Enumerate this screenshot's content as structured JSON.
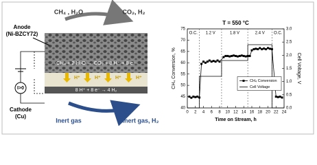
{
  "diagram": {
    "anode": "Anode",
    "anode_material": "(Ni-BZCY72)",
    "feed_in": "CH₄ , H₂O",
    "feed_out": "CO₂, H₂",
    "anode_reaction": "CH₄ + 2 H₂O → CO₂ + 8 H⁺ + 8 e⁻",
    "protons": [
      "H⁺",
      "H⁺",
      "H⁺",
      "H⁺"
    ],
    "cathode_reaction": "8 H⁺ + 8 e⁻ → 4 H₂",
    "current": "I>0",
    "cathode": "Cathode",
    "cathode_material": "(Cu)",
    "sweep_in": "Inert gas",
    "sweep_out": "Inert gas, H₂"
  },
  "chart_data": {
    "type": "line",
    "title": "T = 550 °C",
    "x_label": "Time on Stream, h",
    "y_label": "CH₄ Conversion, %",
    "y2_label": "Cell Voltage, V",
    "xlim": [
      0,
      24
    ],
    "xticks": [
      0,
      2,
      4,
      6,
      8,
      10,
      12,
      14,
      16,
      18,
      20,
      22,
      24
    ],
    "ylim": [
      40,
      75
    ],
    "yticks": [
      40,
      45,
      50,
      55,
      60,
      65,
      70,
      75
    ],
    "y2lim": [
      0,
      3
    ],
    "y2ticks": [
      {
        "value": 0,
        "label": "0.0"
      },
      0.5,
      {
        "value": 1,
        "label": "1.0"
      },
      1.5,
      {
        "value": 2,
        "label": "2.0"
      },
      2.5,
      {
        "value": 3,
        "label": "3.0"
      }
    ],
    "annotations": [
      "O.C.",
      "1.2 V",
      "1.8 V",
      "2.4 V",
      "O.C."
    ],
    "legend": "center right",
    "series": [
      {
        "name": "CH₄ Conversion",
        "color": "#000000",
        "marker": "square",
        "x": [
          0.5,
          1,
          1.5,
          2,
          2.5,
          3,
          3.5,
          4,
          4.5,
          5,
          5.5,
          6,
          6.5,
          7,
          7.5,
          8,
          9,
          9.5,
          10,
          10.5,
          11,
          11.5,
          12,
          12.5,
          13,
          13.5,
          14,
          14.5,
          15,
          15.5,
          16,
          16.5,
          17,
          17.5,
          18,
          18.5,
          19,
          19.5,
          20,
          20.5,
          21,
          22,
          22.5,
          23,
          23.5
        ],
        "values": [
          45,
          44.5,
          45,
          44.8,
          45,
          44.6,
          59.5,
          60.5,
          60,
          60.5,
          61,
          60.5,
          60.8,
          60.5,
          61,
          60.5,
          62.5,
          63,
          63,
          62.8,
          63,
          63.2,
          63,
          62.8,
          63,
          63.2,
          63,
          62.8,
          63,
          63,
          65.5,
          66,
          66.2,
          66,
          66.5,
          66,
          66.3,
          66,
          66.5,
          66.2,
          66,
          45,
          44.8,
          45,
          44.6
        ]
      },
      {
        "name": "Cell Voltage",
        "color": "#000000",
        "axis": "y2",
        "x": [
          0,
          3,
          3,
          8.5,
          8.5,
          15,
          15,
          21,
          21,
          24
        ],
        "values": [
          0,
          0,
          1.2,
          1.2,
          1.8,
          1.8,
          2.4,
          2.4,
          0,
          0
        ]
      }
    ]
  }
}
